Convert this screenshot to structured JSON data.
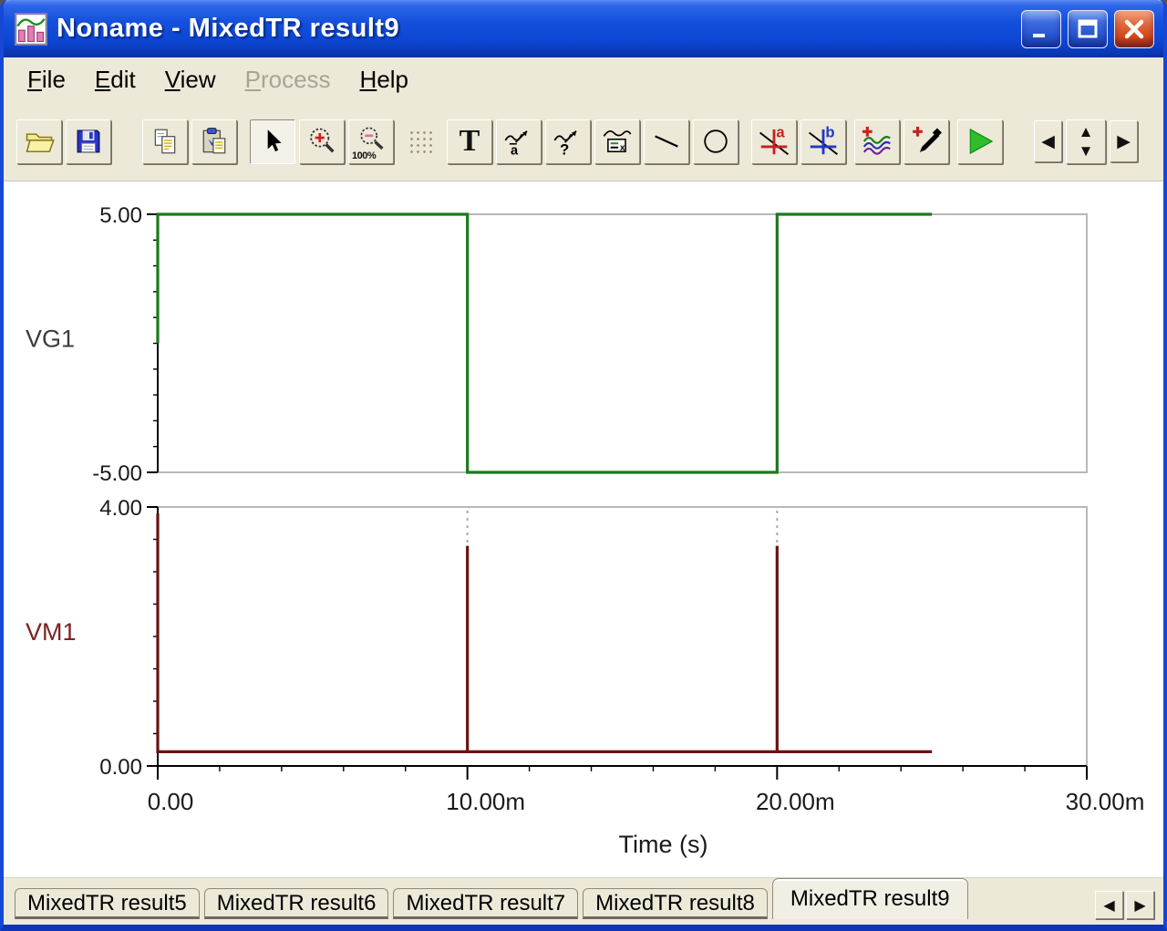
{
  "window": {
    "title": "Noname - MixedTR result9"
  },
  "menu": {
    "items": [
      {
        "label": "File",
        "enabled": true
      },
      {
        "label": "Edit",
        "enabled": true
      },
      {
        "label": "View",
        "enabled": true
      },
      {
        "label": "Process",
        "enabled": false
      },
      {
        "label": "Help",
        "enabled": true
      }
    ]
  },
  "toolbar": {
    "glyphs": {
      "text_tool": "T",
      "zoom_out_label": "100%",
      "cursor_a_label": "a",
      "cursor_b_label": "b",
      "curve_label_a": "a",
      "curve_label_q": "?",
      "legend_x": "x",
      "nav_left": "◀",
      "nav_right": "▶",
      "spin_up": "▲",
      "spin_down": "▼"
    }
  },
  "chart_data": {
    "type": "line",
    "xaxis": {
      "label": "Time (s)",
      "xlim_ms": [
        0,
        30
      ],
      "minor_step": 2,
      "major_ticks": [
        {
          "t": 0,
          "label": "0.00"
        },
        {
          "t": 10,
          "label": "10.00m"
        },
        {
          "t": 20,
          "label": "20.00m"
        },
        {
          "t": 30,
          "label": "30.00m"
        }
      ]
    },
    "plots": [
      {
        "name": "VG1",
        "color": "#1A7A1A",
        "label_color": "#3C3C3C",
        "ylim": [
          -5,
          5
        ],
        "minor_step": 1,
        "yticks": [
          {
            "v": 5,
            "label": "5.00"
          },
          {
            "v": -5,
            "label": "-5.00"
          }
        ],
        "points_t_ms_v": [
          [
            0,
            0
          ],
          [
            0,
            5
          ],
          [
            10,
            5
          ],
          [
            10,
            -5
          ],
          [
            20,
            -5
          ],
          [
            20,
            5
          ],
          [
            25,
            5
          ]
        ]
      },
      {
        "name": "VM1",
        "color": "#6B1212",
        "label_color": "#7A2424",
        "ylim": [
          0,
          4
        ],
        "minor_step": 0.5,
        "yticks": [
          {
            "v": 4,
            "label": "4.00"
          },
          {
            "v": 0,
            "label": "0.00"
          }
        ],
        "points_t_ms_v": [
          [
            0,
            3.9
          ],
          [
            0,
            0.22
          ],
          [
            10,
            0.22
          ],
          [
            10,
            3.4
          ],
          [
            10,
            0.22
          ],
          [
            20,
            0.22
          ],
          [
            20,
            3.4
          ],
          [
            20,
            0.22
          ],
          [
            25,
            0.22
          ]
        ],
        "dashed_segments": [
          [
            [
              10,
              3.45
            ],
            [
              10,
              3.97
            ]
          ],
          [
            [
              20,
              3.45
            ],
            [
              20,
              3.97
            ]
          ]
        ]
      }
    ]
  },
  "tabs": {
    "items": [
      {
        "label": "MixedTR result5",
        "active": false
      },
      {
        "label": "MixedTR result6",
        "active": false
      },
      {
        "label": "MixedTR result7",
        "active": false
      },
      {
        "label": "MixedTR result8",
        "active": false
      },
      {
        "label": "MixedTR result9",
        "active": true
      }
    ]
  }
}
